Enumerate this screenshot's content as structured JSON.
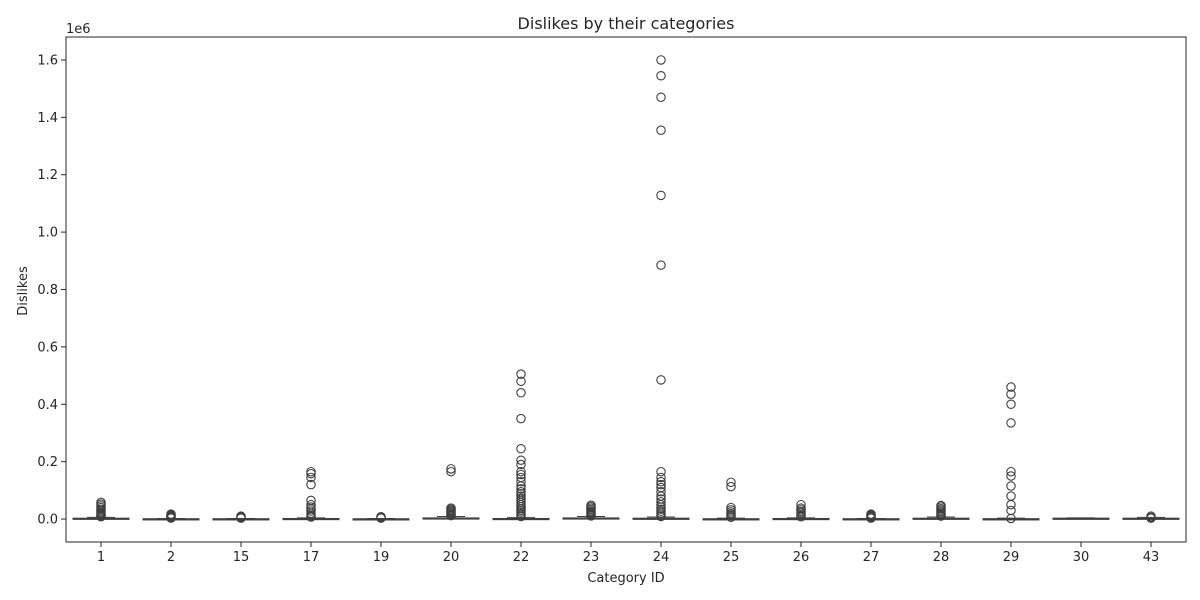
{
  "chart_data": {
    "type": "box",
    "title": "Dislikes by their categories",
    "xlabel": "Category ID",
    "ylabel": "Dislikes",
    "y_offset_label": "1e6",
    "y_scale_factor": 1000000,
    "ylim": [
      -0.08,
      1.68
    ],
    "yticks": [
      0.0,
      0.2,
      0.4,
      0.6,
      0.8,
      1.0,
      1.2,
      1.4,
      1.6
    ],
    "ytick_labels": [
      "0.0",
      "0.2",
      "0.4",
      "0.6",
      "0.8",
      "1.0",
      "1.2",
      "1.4",
      "1.6"
    ],
    "grid": false,
    "legend": "none",
    "colors": {
      "box_line": "#3f3f3f",
      "box_fill": "#ffffff",
      "text": "#262626"
    },
    "categories": [
      "1",
      "2",
      "15",
      "17",
      "19",
      "20",
      "22",
      "23",
      "24",
      "25",
      "26",
      "27",
      "28",
      "29",
      "30",
      "43"
    ],
    "boxes": [
      {
        "category": "1",
        "q1": 0.0,
        "median": 0.001,
        "q3": 0.003,
        "whisker_low": 0.0,
        "whisker_high": 0.006,
        "outliers": [
          0.058,
          0.052,
          0.046,
          0.04,
          0.034,
          0.029,
          0.024,
          0.02,
          0.016,
          0.013,
          0.01,
          0.008
        ]
      },
      {
        "category": "2",
        "q1": 0.0,
        "median": 0.0004,
        "q3": 0.001,
        "whisker_low": 0.0,
        "whisker_high": 0.002,
        "outliers": [
          0.017,
          0.014,
          0.011,
          0.008,
          0.005,
          0.003
        ]
      },
      {
        "category": "15",
        "q1": 0.0,
        "median": 0.0003,
        "q3": 0.001,
        "whisker_low": 0.0,
        "whisker_high": 0.002,
        "outliers": [
          0.01,
          0.007,
          0.005,
          0.003
        ]
      },
      {
        "category": "17",
        "q1": 0.0,
        "median": 0.0005,
        "q3": 0.002,
        "whisker_low": 0.0,
        "whisker_high": 0.004,
        "outliers": [
          0.165,
          0.158,
          0.145,
          0.12,
          0.065,
          0.05,
          0.042,
          0.035,
          0.028,
          0.02,
          0.014,
          0.01,
          0.007
        ]
      },
      {
        "category": "19",
        "q1": 0.0,
        "median": 0.0002,
        "q3": 0.0008,
        "whisker_low": 0.0,
        "whisker_high": 0.002,
        "outliers": [
          0.008,
          0.005,
          0.003
        ]
      },
      {
        "category": "20",
        "q1": 0.0,
        "median": 0.001,
        "q3": 0.004,
        "whisker_low": 0.0,
        "whisker_high": 0.009,
        "outliers": [
          0.175,
          0.165,
          0.038,
          0.034,
          0.03,
          0.026,
          0.022,
          0.018,
          0.015,
          0.012
        ]
      },
      {
        "category": "22",
        "q1": 0.0,
        "median": 0.0005,
        "q3": 0.002,
        "whisker_low": 0.0,
        "whisker_high": 0.005,
        "outliers": [
          0.505,
          0.48,
          0.44,
          0.35,
          0.245,
          0.205,
          0.19,
          0.165,
          0.155,
          0.145,
          0.13,
          0.115,
          0.105,
          0.095,
          0.088,
          0.08,
          0.072,
          0.065,
          0.058,
          0.05,
          0.043,
          0.036,
          0.03,
          0.024,
          0.018,
          0.013,
          0.009
        ]
      },
      {
        "category": "23",
        "q1": 0.0,
        "median": 0.001,
        "q3": 0.004,
        "whisker_low": 0.0,
        "whisker_high": 0.009,
        "outliers": [
          0.048,
          0.043,
          0.038,
          0.033,
          0.028,
          0.024,
          0.02,
          0.016,
          0.013,
          0.011
        ]
      },
      {
        "category": "24",
        "q1": 0.0,
        "median": 0.001,
        "q3": 0.003,
        "whisker_low": 0.0,
        "whisker_high": 0.007,
        "outliers": [
          1.6,
          1.545,
          1.47,
          1.355,
          1.128,
          0.885,
          0.485,
          0.165,
          0.145,
          0.13,
          0.12,
          0.11,
          0.095,
          0.08,
          0.07,
          0.06,
          0.05,
          0.042,
          0.034,
          0.027,
          0.02,
          0.014,
          0.009
        ]
      },
      {
        "category": "25",
        "q1": 0.0,
        "median": 0.0003,
        "q3": 0.001,
        "whisker_low": 0.0,
        "whisker_high": 0.003,
        "outliers": [
          0.128,
          0.113,
          0.04,
          0.032,
          0.025,
          0.019,
          0.014,
          0.01,
          0.006
        ]
      },
      {
        "category": "26",
        "q1": 0.0,
        "median": 0.0004,
        "q3": 0.002,
        "whisker_low": 0.0,
        "whisker_high": 0.004,
        "outliers": [
          0.05,
          0.038,
          0.032,
          0.026,
          0.021,
          0.016,
          0.012,
          0.008
        ]
      },
      {
        "category": "27",
        "q1": 0.0,
        "median": 0.0003,
        "q3": 0.001,
        "whisker_low": 0.0,
        "whisker_high": 0.002,
        "outliers": [
          0.017,
          0.014,
          0.011,
          0.008,
          0.005,
          0.003
        ]
      },
      {
        "category": "28",
        "q1": 0.0,
        "median": 0.001,
        "q3": 0.003,
        "whisker_low": 0.0,
        "whisker_high": 0.007,
        "outliers": [
          0.047,
          0.042,
          0.036,
          0.031,
          0.026,
          0.021,
          0.017,
          0.013,
          0.01
        ]
      },
      {
        "category": "29",
        "q1": 0.0,
        "median": 0.0005,
        "q3": 0.001,
        "whisker_low": 0.0,
        "whisker_high": 0.003,
        "outliers": [
          0.46,
          0.435,
          0.4,
          0.335,
          0.165,
          0.15,
          0.115,
          0.08,
          0.05,
          0.03,
          0.002
        ]
      },
      {
        "category": "30",
        "q1": 0.001,
        "median": 0.002,
        "q3": 0.003,
        "whisker_low": 0.0,
        "whisker_high": 0.004,
        "outliers": []
      },
      {
        "category": "43",
        "q1": 0.0,
        "median": 0.001,
        "q3": 0.003,
        "whisker_low": 0.0,
        "whisker_high": 0.006,
        "outliers": [
          0.01,
          0.006,
          0.003
        ]
      }
    ]
  }
}
